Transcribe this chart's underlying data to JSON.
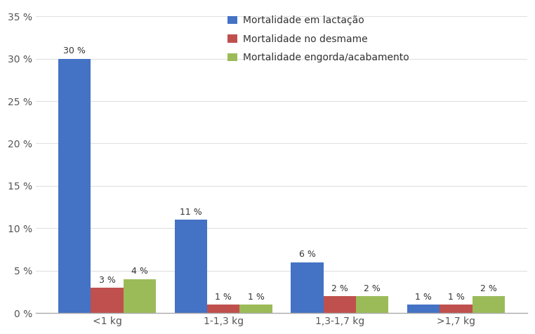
{
  "categories": [
    "<1 kg",
    "1-1,3 kg",
    "1,3-1,7 kg",
    ">1,7 kg"
  ],
  "series": [
    {
      "label": "Mortalidade em lactação",
      "color": "#4472C4",
      "values": [
        30,
        11,
        6,
        1
      ]
    },
    {
      "label": "Mortalidade no desmame",
      "color": "#C0504D",
      "values": [
        3,
        1,
        2,
        1
      ]
    },
    {
      "label": "Mortalidade engorda/acabamento",
      "color": "#9BBB59",
      "values": [
        4,
        1,
        2,
        2
      ]
    }
  ],
  "ylim": [
    0,
    36
  ],
  "yticks": [
    0,
    5,
    10,
    15,
    20,
    25,
    30,
    35
  ],
  "ytick_labels": [
    "0 %",
    "5 %",
    "10 %",
    "15 %",
    "20 %",
    "25 %",
    "30 %",
    "35 %"
  ],
  "bar_width": 0.28,
  "background_color": "#ffffff",
  "font_size": 10,
  "label_font_size": 9,
  "tick_color": "#555555",
  "spine_color": "#aaaaaa",
  "grid_color": "#e0e0e0"
}
